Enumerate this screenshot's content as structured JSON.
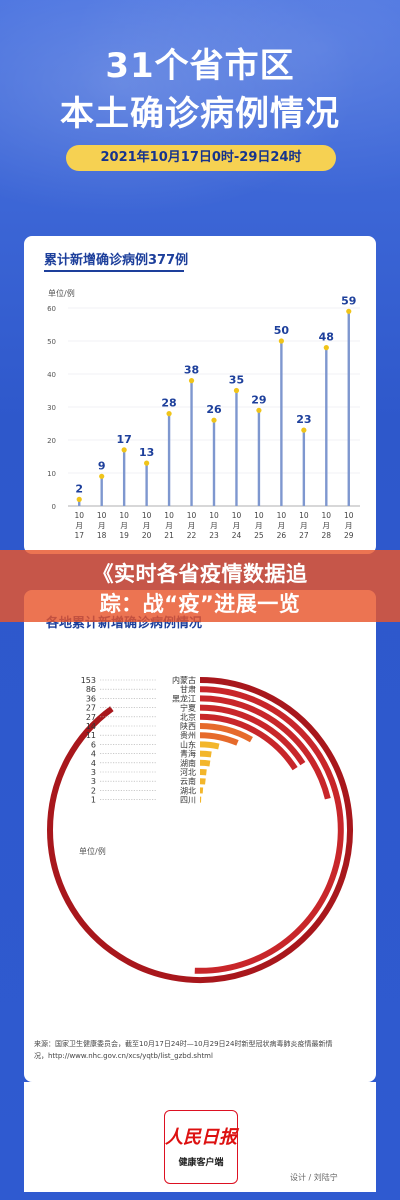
{
  "header": {
    "title_line1": "31个省市区",
    "title_line2": "本土确诊病例情况",
    "date_range": "2021年10月17日0时-29日24时"
  },
  "banner": {
    "line1": "《实时各省疫情数据追",
    "line2": "踪：战“疫”进展一览"
  },
  "footer": {
    "source_line1": "来源：国家卫生健康委员会，截至10月17日24时—10月29日24时新型冠状病毒肺炎疫情最新情",
    "source_line2": "况，http://www.nhc.gov.cn/xcs/yqtb/list_gzbd.shtml",
    "logo_text": "人民日报",
    "logo_subtext": "健康客户端",
    "designer": "设计 / 刘陆宁"
  },
  "colors": {
    "accent_yellow": "#f6d152",
    "bar_blue": "#7e97cf",
    "dot_yellow": "#f0c419",
    "banner_orange": "#e8552c",
    "arc_dark_red": "#a8171c",
    "arc_red": "#c8262a",
    "arc_orange": "#e66a2b",
    "arc_yellow": "#f3b62b"
  },
  "chart_data": [
    {
      "type": "bar",
      "title": "累计新增确诊病例377例",
      "ylabel": "单位/例",
      "ylim": [
        0,
        60
      ],
      "yticks": [
        0,
        10,
        20,
        30,
        40,
        50,
        60
      ],
      "categories": [
        "10月17日",
        "10月18日",
        "10月19日",
        "10月20日",
        "10月21日",
        "10月22日",
        "10月23日",
        "10月24日",
        "10月25日",
        "10月26日",
        "10月27日",
        "10月28日",
        "10月29日"
      ],
      "category_labels": [
        [
          "10",
          "月",
          "17"
        ],
        [
          "10",
          "月",
          "18"
        ],
        [
          "10",
          "月",
          "19"
        ],
        [
          "10",
          "月",
          "20"
        ],
        [
          "10",
          "月",
          "21"
        ],
        [
          "10",
          "月",
          "22"
        ],
        [
          "10",
          "月",
          "23"
        ],
        [
          "10",
          "月",
          "24"
        ],
        [
          "10",
          "月",
          "25"
        ],
        [
          "10",
          "月",
          "26"
        ],
        [
          "10",
          "月",
          "27"
        ],
        [
          "10",
          "月",
          "28"
        ],
        [
          "10",
          "月",
          "29"
        ]
      ],
      "values": [
        2,
        9,
        17,
        13,
        28,
        38,
        26,
        35,
        29,
        50,
        23,
        48,
        59
      ]
    },
    {
      "type": "radial-bar",
      "title": "各地累计新增确诊病例情况",
      "unit": "单位/例",
      "categories": [
        "内蒙古",
        "甘肃",
        "黑龙江",
        "宁夏",
        "北京",
        "陕西",
        "贵州",
        "山东",
        "青海",
        "湖南",
        "河北",
        "云南",
        "湖北",
        "四川"
      ],
      "values": [
        153,
        86,
        36,
        27,
        27,
        14,
        11,
        6,
        4,
        4,
        3,
        3,
        2,
        1
      ]
    }
  ]
}
